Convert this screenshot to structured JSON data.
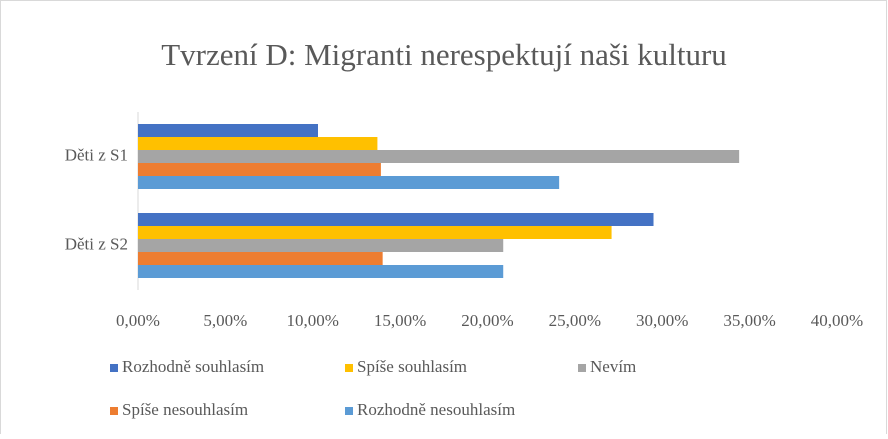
{
  "chart_data": {
    "type": "hbar",
    "title": "Tvrzení D: Migranti nerespektují naši kulturu",
    "categories": [
      "Děti z S1",
      "Děti z S2"
    ],
    "series": [
      {
        "name": "Rozhodně souhlasím",
        "color": "#4472c4",
        "values": [
          10.3,
          29.5
        ]
      },
      {
        "name": "Spíše souhlasím",
        "color": "#ffc000",
        "values": [
          13.7,
          27.1
        ]
      },
      {
        "name": "Nevím",
        "color": "#a5a5a5",
        "values": [
          34.4,
          20.9
        ]
      },
      {
        "name": "Spíše nesouhlasím",
        "color": "#ed7d31",
        "values": [
          13.9,
          14.0
        ]
      },
      {
        "name": "Rozhodně nesouhlasím",
        "color": "#5b9bd5",
        "values": [
          24.1,
          20.9
        ]
      }
    ],
    "xlim": [
      0,
      40
    ],
    "xticks": [
      {
        "value": 0,
        "label": "0,00%"
      },
      {
        "value": 5,
        "label": "5,00%"
      },
      {
        "value": 10,
        "label": "10,00%"
      },
      {
        "value": 15,
        "label": "15,00%"
      },
      {
        "value": 20,
        "label": "20,00%"
      },
      {
        "value": 25,
        "label": "25,00%"
      },
      {
        "value": 30,
        "label": "30,00%"
      },
      {
        "value": 35,
        "label": "35,00%"
      },
      {
        "value": 40,
        "label": "40,00%"
      }
    ],
    "grid": false,
    "legend": "bottom"
  }
}
